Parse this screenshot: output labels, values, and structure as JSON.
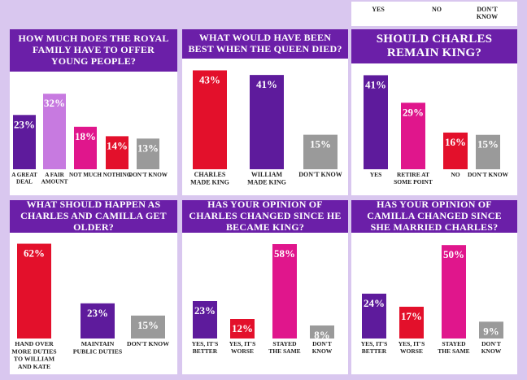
{
  "top_strip": {
    "labels": [
      "YES",
      "NO",
      "DON'T KNOW"
    ]
  },
  "colors": {
    "title_bg": "#6b1fa8",
    "purple": "#5e1b9c",
    "lilac": "#c77ae0",
    "pink": "#e0168c",
    "red": "#e3102b",
    "grey": "#9a9a9a",
    "background": "#d9c7ef"
  },
  "chart_data": [
    {
      "type": "bar",
      "title": "HOW MUCH DOES THE ROYAL FAMILY HAVE TO OFFER YOUNG PEOPLE?",
      "categories": [
        "A GREAT DEAL",
        "A FAIR AMOUNT",
        "NOT MUCH",
        "NOTHING",
        "DON'T KNOW"
      ],
      "values": [
        23,
        32,
        18,
        14,
        13
      ],
      "value_labels": [
        "23%",
        "32%",
        "18%",
        "14%",
        "13%"
      ],
      "bar_colors": [
        "purple",
        "lilac",
        "pink",
        "red",
        "grey"
      ],
      "ylim": [
        0,
        40
      ],
      "unit": "%"
    },
    {
      "type": "bar",
      "title": "WHAT WOULD HAVE BEEN BEST WHEN THE QUEEN DIED?",
      "categories": [
        "CHARLES MADE KING",
        "WILLIAM MADE KING",
        "DON'T KNOW"
      ],
      "values": [
        43,
        41,
        15
      ],
      "value_labels": [
        "43%",
        "41%",
        "15%"
      ],
      "bar_colors": [
        "red",
        "purple",
        "grey"
      ],
      "ylim": [
        0,
        46
      ],
      "unit": "%"
    },
    {
      "type": "bar",
      "title": "SHOULD CHARLES REMAIN KING?",
      "categories": [
        "YES",
        "RETIRE AT SOME POINT",
        "NO",
        "DON'T KNOW"
      ],
      "values": [
        41,
        29,
        16,
        15
      ],
      "value_labels": [
        "41%",
        "29%",
        "16%",
        "15%"
      ],
      "bar_colors": [
        "purple",
        "pink",
        "red",
        "grey"
      ],
      "ylim": [
        0,
        44
      ],
      "unit": "%"
    },
    {
      "type": "bar",
      "title": "WHAT SHOULD HAPPEN AS CHARLES AND CAMILLA GET OLDER?",
      "categories": [
        "HAND OVER MORE DUTIES TO WILLIAM AND KATE",
        "MAINTAIN PUBLIC DUTIES",
        "DON'T KNOW"
      ],
      "values": [
        62,
        23,
        15
      ],
      "value_labels": [
        "62%",
        "23%",
        "15%"
      ],
      "bar_colors": [
        "red",
        "purple",
        "grey"
      ],
      "ylim": [
        0,
        66
      ],
      "unit": "%"
    },
    {
      "type": "bar",
      "title": "HAS YOUR OPINION OF CHARLES CHANGED SINCE HE BECAME KING?",
      "categories": [
        "YES, IT'S BETTER",
        "YES, IT'S WORSE",
        "STAYED THE SAME",
        "DON'T KNOW"
      ],
      "values": [
        23,
        12,
        58,
        8
      ],
      "value_labels": [
        "23%",
        "12%",
        "58%",
        "8%"
      ],
      "bar_colors": [
        "purple",
        "red",
        "pink",
        "grey"
      ],
      "ylim": [
        0,
        62
      ],
      "unit": "%"
    },
    {
      "type": "bar",
      "title": "HAS YOUR OPINION OF CAMILLA CHANGED SINCE SHE MARRIED CHARLES?",
      "categories": [
        "YES, IT'S BETTER",
        "YES, IT'S WORSE",
        "STAYED THE SAME",
        "DON'T KNOW"
      ],
      "values": [
        24,
        17,
        50,
        9
      ],
      "value_labels": [
        "24%",
        "17%",
        "50%",
        "9%"
      ],
      "bar_colors": [
        "purple",
        "red",
        "pink",
        "grey"
      ],
      "ylim": [
        0,
        54
      ],
      "unit": "%"
    }
  ]
}
